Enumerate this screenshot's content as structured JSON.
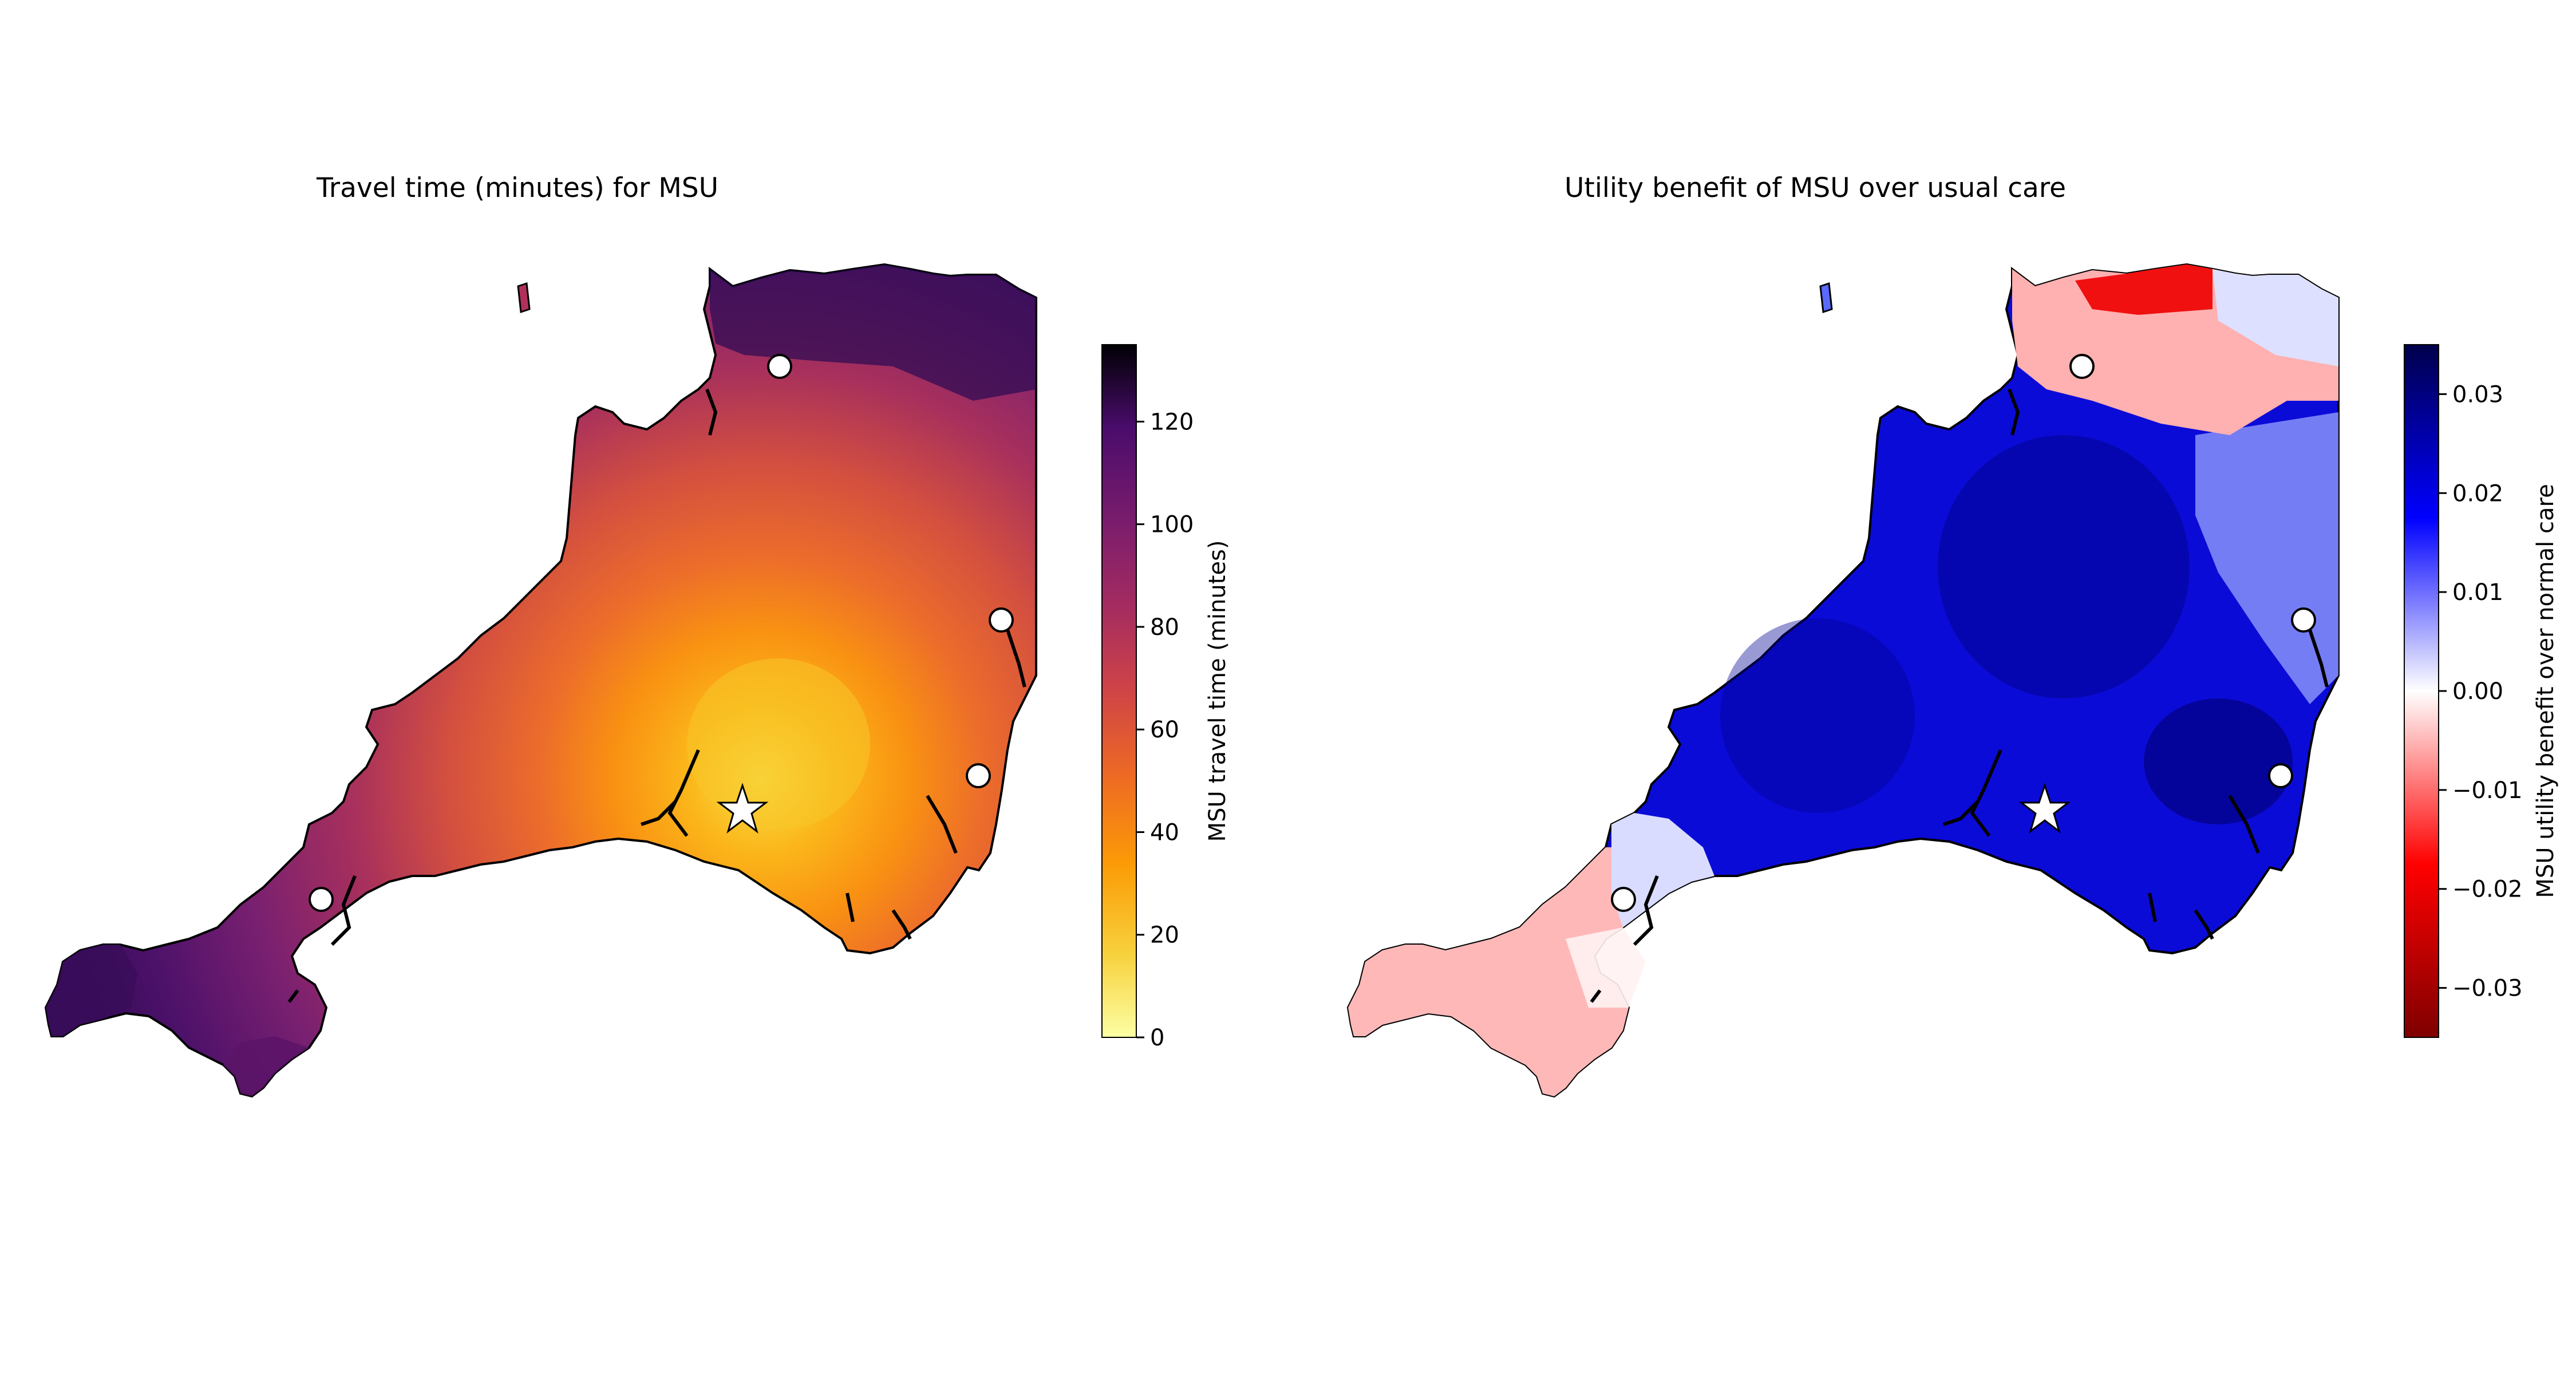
{
  "left_panel": {
    "title": "Travel time (minutes) for MSU",
    "colorbar": {
      "label": "MSU travel time (minutes)",
      "colormap": "inferno_r",
      "range": [
        0,
        135
      ],
      "ticks": [
        "0",
        "20",
        "40",
        "60",
        "80",
        "100",
        "120"
      ]
    }
  },
  "right_panel": {
    "title": "Utility benefit of MSU over usual care",
    "colorbar": {
      "label": "MSU utility benefit over normal care",
      "colormap": "seismic_r",
      "range": [
        -0.035,
        0.035
      ],
      "ticks": [
        "−0.03",
        "−0.02",
        "−0.01",
        "0.00",
        "0.01",
        "0.02",
        "0.03"
      ]
    }
  },
  "markers": {
    "msu_base": "star",
    "hospitals": "white-circle",
    "hospital_count": 4
  }
}
